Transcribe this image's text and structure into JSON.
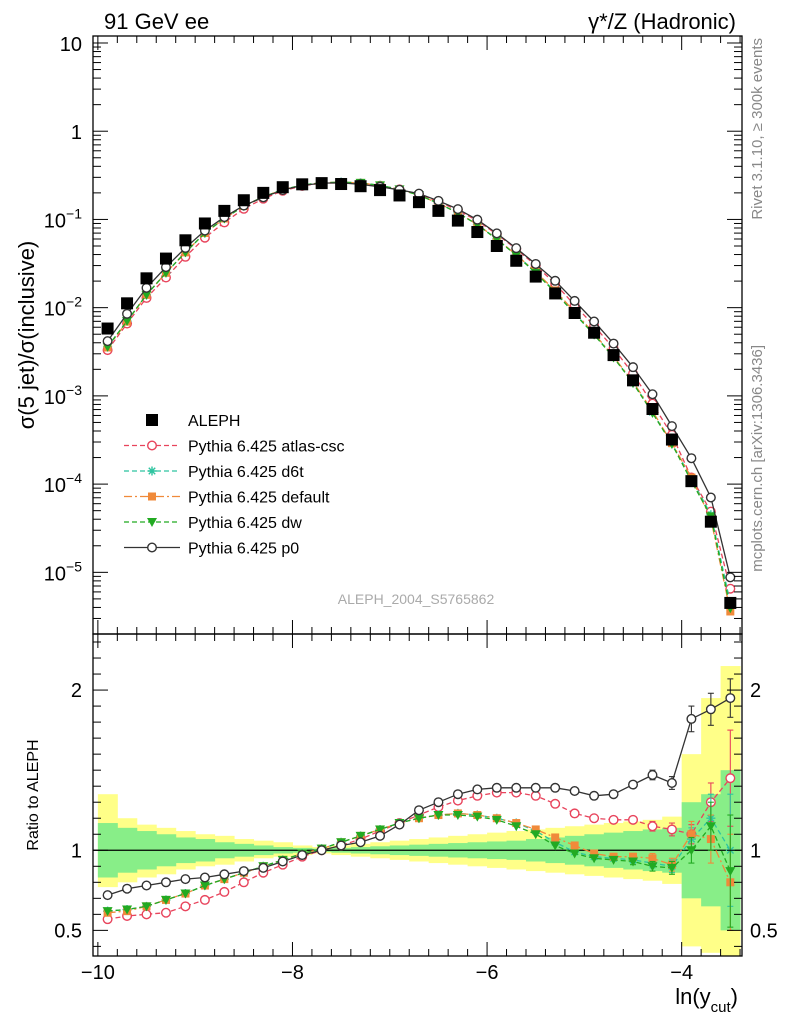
{
  "header": {
    "left": "91 GeV ee",
    "right": "γ*/Z (Hadronic)"
  },
  "side_labels": {
    "rivet": "Rivet 3.1.10, ≥ 300k events",
    "mcplots": "mcplots.cern.ch [arXiv:1306.3436]"
  },
  "analysis_label": "ALEPH_2004_S5765862",
  "main_plot": {
    "ylabel": "σ(5 jet)/σ(inclusive)",
    "yscale": "log",
    "ylim": [
      2e-06,
      12
    ],
    "ytick_labels": [
      "10",
      "1",
      "10^-1",
      "10^-2",
      "10^-3",
      "10^-4",
      "10^-5"
    ],
    "ytick_values": [
      10,
      1,
      0.1,
      0.01,
      0.001,
      0.0001,
      1e-05
    ]
  },
  "ratio_plot": {
    "ylabel": "Ratio to ALEPH",
    "ylim": [
      0.34,
      2.35
    ],
    "ytick_labels": [
      "0.5",
      "1",
      "2"
    ],
    "ytick_values": [
      0.5,
      1,
      2
    ]
  },
  "xaxis": {
    "label_main": "ln(y",
    "label_sub": "cut",
    "label_close": ")",
    "xlim": [
      -10.05,
      -3.38
    ],
    "tick_labels": [
      "−10",
      "−8",
      "−6",
      "−4"
    ],
    "tick_values": [
      -10,
      -8,
      -6,
      -4
    ]
  },
  "legend": [
    {
      "name": "ALEPH",
      "color": "#000000",
      "marker": "square",
      "dash": ""
    },
    {
      "name": "Pythia 6.425 atlas-csc",
      "color": "#e8445c",
      "marker": "circle-open",
      "dash": "5,3"
    },
    {
      "name": "Pythia 6.425 d6t",
      "color": "#2ec4a0",
      "marker": "star",
      "dash": "5,3"
    },
    {
      "name": "Pythia 6.425 default",
      "color": "#f08a3a",
      "marker": "square-small",
      "dash": "8,3,2,3"
    },
    {
      "name": "Pythia 6.425 dw",
      "color": "#22aa22",
      "marker": "triangle-down",
      "dash": "5,3"
    },
    {
      "name": "Pythia 6.425 p0",
      "color": "#333333",
      "marker": "circle-open",
      "dash": ""
    }
  ],
  "chart_data": {
    "type": "line",
    "x": [
      -9.9,
      -9.7,
      -9.5,
      -9.3,
      -9.1,
      -8.9,
      -8.7,
      -8.5,
      -8.3,
      -8.1,
      -7.9,
      -7.7,
      -7.5,
      -7.3,
      -7.1,
      -6.9,
      -6.7,
      -6.5,
      -6.3,
      -6.1,
      -5.9,
      -5.7,
      -5.5,
      -5.3,
      -5.1,
      -4.9,
      -4.7,
      -4.5,
      -4.3,
      -4.1,
      -3.9,
      -3.7,
      -3.5
    ],
    "band_x_edges": [
      -10.0,
      -9.8,
      -9.6,
      -9.4,
      -9.2,
      -9.0,
      -8.8,
      -8.6,
      -8.4,
      -8.2,
      -8.0,
      -7.8,
      -7.6,
      -7.4,
      -7.2,
      -7.0,
      -6.8,
      -6.6,
      -6.4,
      -6.2,
      -6.0,
      -5.8,
      -5.6,
      -5.4,
      -5.2,
      -5.0,
      -4.8,
      -4.6,
      -4.4,
      -4.2,
      -4.0,
      -3.8,
      -3.6,
      -3.4
    ],
    "data": {
      "name": "ALEPH",
      "values": [
        0.0058,
        0.0112,
        0.0215,
        0.036,
        0.058,
        0.09,
        0.125,
        0.165,
        0.2,
        0.232,
        0.25,
        0.258,
        0.252,
        0.238,
        0.215,
        0.187,
        0.157,
        0.125,
        0.097,
        0.072,
        0.05,
        0.034,
        0.0225,
        0.0145,
        0.0087,
        0.0052,
        0.0029,
        0.0015,
        0.00071,
        0.00032,
        0.000108,
        3.75e-05,
        4.5e-06
      ],
      "band_inner": [
        [
          0.83,
          1.17
        ],
        [
          0.86,
          1.14
        ],
        [
          0.88,
          1.12
        ],
        [
          0.9,
          1.1
        ],
        [
          0.92,
          1.08
        ],
        [
          0.93,
          1.07
        ],
        [
          0.95,
          1.05
        ],
        [
          0.96,
          1.04
        ],
        [
          0.97,
          1.03
        ],
        [
          0.98,
          1.02
        ],
        [
          0.985,
          1.015
        ],
        [
          0.99,
          1.01
        ],
        [
          0.985,
          1.015
        ],
        [
          0.98,
          1.02
        ],
        [
          0.975,
          1.025
        ],
        [
          0.97,
          1.03
        ],
        [
          0.965,
          1.035
        ],
        [
          0.96,
          1.04
        ],
        [
          0.955,
          1.045
        ],
        [
          0.95,
          1.05
        ],
        [
          0.945,
          1.055
        ],
        [
          0.94,
          1.06
        ],
        [
          0.93,
          1.07
        ],
        [
          0.92,
          1.08
        ],
        [
          0.91,
          1.09
        ],
        [
          0.9,
          1.1
        ],
        [
          0.89,
          1.11
        ],
        [
          0.88,
          1.12
        ],
        [
          0.87,
          1.13
        ],
        [
          0.86,
          1.14
        ],
        [
          0.7,
          1.3
        ],
        [
          0.65,
          1.35
        ],
        [
          0.5,
          1.5
        ]
      ],
      "band_outer": [
        [
          0.77,
          1.35
        ],
        [
          0.8,
          1.2
        ],
        [
          0.83,
          1.16
        ],
        [
          0.85,
          1.14
        ],
        [
          0.88,
          1.12
        ],
        [
          0.9,
          1.1
        ],
        [
          0.91,
          1.09
        ],
        [
          0.93,
          1.07
        ],
        [
          0.95,
          1.06
        ],
        [
          0.96,
          1.05
        ],
        [
          0.97,
          1.03
        ],
        [
          0.98,
          1.02
        ],
        [
          0.97,
          1.03
        ],
        [
          0.96,
          1.04
        ],
        [
          0.95,
          1.05
        ],
        [
          0.94,
          1.06
        ],
        [
          0.93,
          1.07
        ],
        [
          0.92,
          1.08
        ],
        [
          0.91,
          1.09
        ],
        [
          0.9,
          1.1
        ],
        [
          0.89,
          1.11
        ],
        [
          0.88,
          1.12
        ],
        [
          0.87,
          1.13
        ],
        [
          0.86,
          1.14
        ],
        [
          0.85,
          1.15
        ],
        [
          0.84,
          1.16
        ],
        [
          0.83,
          1.17
        ],
        [
          0.82,
          1.18
        ],
        [
          0.81,
          1.19
        ],
        [
          0.79,
          1.21
        ],
        [
          0.4,
          1.6
        ],
        [
          0.36,
          1.95
        ],
        [
          0.34,
          2.15
        ]
      ]
    },
    "series": [
      {
        "name": "Pythia 6.425 atlas-csc",
        "ratio": [
          0.57,
          0.59,
          0.6,
          0.61,
          0.65,
          0.69,
          0.74,
          0.8,
          0.86,
          0.91,
          0.96,
          1.0,
          1.03,
          1.07,
          1.12,
          1.17,
          1.22,
          1.27,
          1.31,
          1.34,
          1.36,
          1.36,
          1.34,
          1.29,
          1.23,
          1.2,
          1.19,
          1.19,
          1.15,
          1.13,
          1.1,
          1.3,
          1.45
        ],
        "err": [
          0.01,
          0.01,
          0.01,
          0.01,
          0.01,
          0.01,
          0.01,
          0.01,
          0.01,
          0.01,
          0.01,
          0.01,
          0.01,
          0.01,
          0.01,
          0.01,
          0.01,
          0.01,
          0.01,
          0.01,
          0.01,
          0.01,
          0.01,
          0.01,
          0.01,
          0.01,
          0.01,
          0.02,
          0.03,
          0.04,
          0.06,
          0.12,
          0.3
        ]
      },
      {
        "name": "Pythia 6.425 d6t",
        "ratio": [
          0.62,
          0.63,
          0.65,
          0.69,
          0.73,
          0.78,
          0.82,
          0.86,
          0.9,
          0.94,
          0.98,
          1.01,
          1.05,
          1.09,
          1.13,
          1.17,
          1.2,
          1.22,
          1.23,
          1.22,
          1.2,
          1.17,
          1.12,
          1.05,
          0.99,
          0.96,
          0.95,
          0.94,
          0.92,
          0.9,
          1.07,
          1.2,
          1.0
        ],
        "err": [
          0.01,
          0.01,
          0.01,
          0.01,
          0.01,
          0.01,
          0.01,
          0.01,
          0.01,
          0.01,
          0.01,
          0.01,
          0.01,
          0.01,
          0.01,
          0.01,
          0.01,
          0.01,
          0.01,
          0.01,
          0.01,
          0.01,
          0.01,
          0.01,
          0.01,
          0.01,
          0.01,
          0.02,
          0.03,
          0.04,
          0.07,
          0.15,
          0.35
        ]
      },
      {
        "name": "Pythia 6.425 default",
        "ratio": [
          0.61,
          0.62,
          0.65,
          0.69,
          0.73,
          0.78,
          0.82,
          0.86,
          0.9,
          0.94,
          0.98,
          1.01,
          1.05,
          1.09,
          1.13,
          1.17,
          1.2,
          1.22,
          1.23,
          1.22,
          1.2,
          1.17,
          1.13,
          1.08,
          1.03,
          0.98,
          0.96,
          0.96,
          0.95,
          0.91,
          1.1,
          1.07,
          0.8
        ],
        "err": [
          0.01,
          0.01,
          0.01,
          0.01,
          0.01,
          0.01,
          0.01,
          0.01,
          0.01,
          0.01,
          0.01,
          0.01,
          0.01,
          0.01,
          0.01,
          0.01,
          0.01,
          0.01,
          0.01,
          0.01,
          0.01,
          0.01,
          0.01,
          0.01,
          0.01,
          0.01,
          0.01,
          0.02,
          0.03,
          0.04,
          0.08,
          0.15,
          0.3
        ]
      },
      {
        "name": "Pythia 6.425 dw",
        "ratio": [
          0.62,
          0.63,
          0.65,
          0.69,
          0.73,
          0.78,
          0.82,
          0.86,
          0.9,
          0.94,
          0.98,
          1.01,
          1.05,
          1.09,
          1.13,
          1.17,
          1.2,
          1.22,
          1.22,
          1.21,
          1.19,
          1.15,
          1.1,
          1.03,
          0.98,
          0.95,
          0.94,
          0.93,
          0.9,
          0.89,
          1.0,
          1.15,
          0.87
        ],
        "err": [
          0.01,
          0.01,
          0.01,
          0.01,
          0.01,
          0.01,
          0.01,
          0.01,
          0.01,
          0.01,
          0.01,
          0.01,
          0.01,
          0.01,
          0.01,
          0.01,
          0.01,
          0.01,
          0.01,
          0.01,
          0.01,
          0.01,
          0.01,
          0.01,
          0.01,
          0.01,
          0.01,
          0.02,
          0.03,
          0.04,
          0.08,
          0.15,
          0.35
        ]
      },
      {
        "name": "Pythia 6.425 p0",
        "ratio": [
          0.72,
          0.76,
          0.78,
          0.8,
          0.82,
          0.83,
          0.85,
          0.87,
          0.89,
          0.93,
          0.97,
          1.0,
          1.03,
          1.05,
          1.09,
          1.16,
          1.25,
          1.3,
          1.35,
          1.38,
          1.39,
          1.39,
          1.39,
          1.39,
          1.37,
          1.34,
          1.35,
          1.41,
          1.47,
          1.42,
          1.82,
          1.88,
          1.95
        ],
        "err": [
          0.01,
          0.01,
          0.01,
          0.01,
          0.01,
          0.01,
          0.01,
          0.01,
          0.01,
          0.01,
          0.01,
          0.01,
          0.01,
          0.01,
          0.01,
          0.01,
          0.01,
          0.01,
          0.01,
          0.01,
          0.01,
          0.01,
          0.01,
          0.01,
          0.01,
          0.01,
          0.01,
          0.02,
          0.03,
          0.04,
          0.08,
          0.1,
          0.12
        ]
      }
    ]
  }
}
